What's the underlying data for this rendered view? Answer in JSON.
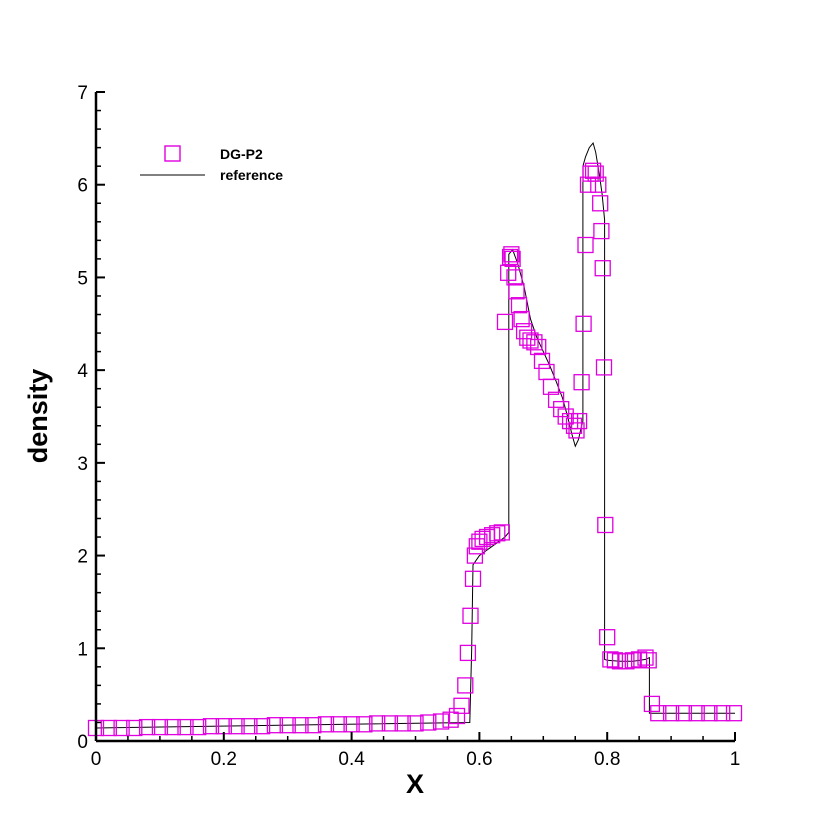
{
  "chart_data": {
    "type": "scatter",
    "title": "",
    "xlabel": "X",
    "ylabel": "density",
    "xlim": [
      0,
      1
    ],
    "ylim": [
      0,
      7
    ],
    "xticks": [
      0,
      0.2,
      0.4,
      0.6,
      0.8,
      1
    ],
    "yticks": [
      0,
      1,
      2,
      3,
      4,
      5,
      6,
      7
    ],
    "xtick_labels": [
      "0",
      "0.2",
      "0.4",
      "0.6",
      "0.8",
      "1"
    ],
    "ytick_labels": [
      "0",
      "1",
      "2",
      "3",
      "4",
      "5",
      "6",
      "7"
    ],
    "grid": false,
    "legend_position": "top-left",
    "series": [
      {
        "name": "DG-P2",
        "kind": "markers",
        "marker": "square-open",
        "color": "#e000e0",
        "x": [
          0.0,
          0.02,
          0.04,
          0.06,
          0.08,
          0.1,
          0.12,
          0.14,
          0.16,
          0.18,
          0.2,
          0.22,
          0.24,
          0.26,
          0.28,
          0.3,
          0.32,
          0.34,
          0.36,
          0.38,
          0.4,
          0.42,
          0.44,
          0.46,
          0.48,
          0.5,
          0.52,
          0.54,
          0.555,
          0.565,
          0.572,
          0.578,
          0.582,
          0.586,
          0.59,
          0.593,
          0.596,
          0.6,
          0.605,
          0.612,
          0.62,
          0.628,
          0.635,
          0.64,
          0.645,
          0.648,
          0.65,
          0.652,
          0.655,
          0.658,
          0.662,
          0.666,
          0.67,
          0.675,
          0.68,
          0.686,
          0.692,
          0.698,
          0.705,
          0.712,
          0.72,
          0.728,
          0.735,
          0.742,
          0.748,
          0.752,
          0.756,
          0.76,
          0.763,
          0.766,
          0.77,
          0.774,
          0.778,
          0.782,
          0.786,
          0.789,
          0.791,
          0.793,
          0.795,
          0.797,
          0.8,
          0.805,
          0.812,
          0.82,
          0.83,
          0.84,
          0.85,
          0.86,
          0.865,
          0.87,
          0.88,
          0.9,
          0.92,
          0.94,
          0.96,
          0.98,
          1.0
        ],
        "y": [
          0.14,
          0.14,
          0.14,
          0.14,
          0.15,
          0.15,
          0.15,
          0.15,
          0.15,
          0.16,
          0.16,
          0.16,
          0.16,
          0.16,
          0.17,
          0.17,
          0.17,
          0.17,
          0.18,
          0.18,
          0.18,
          0.18,
          0.19,
          0.19,
          0.19,
          0.19,
          0.2,
          0.21,
          0.23,
          0.27,
          0.38,
          0.6,
          0.95,
          1.35,
          1.75,
          2.0,
          2.1,
          2.15,
          2.18,
          2.2,
          2.22,
          2.24,
          2.25,
          4.52,
          5.05,
          5.22,
          5.25,
          5.2,
          5.0,
          4.85,
          4.7,
          4.55,
          4.42,
          4.35,
          4.32,
          4.3,
          4.25,
          4.1,
          3.98,
          3.82,
          3.68,
          3.58,
          3.5,
          3.45,
          3.4,
          3.35,
          3.45,
          3.87,
          4.5,
          5.35,
          6.0,
          6.12,
          6.15,
          6.12,
          6.0,
          5.8,
          5.5,
          5.1,
          4.03,
          2.33,
          1.12,
          0.88,
          0.87,
          0.86,
          0.86,
          0.87,
          0.88,
          0.9,
          0.87,
          0.4,
          0.3,
          0.3,
          0.3,
          0.3,
          0.3,
          0.3,
          0.3
        ]
      },
      {
        "name": "reference",
        "kind": "line",
        "color": "#000000",
        "x": [
          0.0,
          0.585,
          0.588,
          0.59,
          0.6,
          0.61,
          0.62,
          0.63,
          0.64,
          0.646,
          0.646,
          0.652,
          0.66,
          0.67,
          0.68,
          0.69,
          0.7,
          0.71,
          0.72,
          0.73,
          0.738,
          0.745,
          0.75,
          0.755,
          0.76,
          0.762,
          0.762,
          0.766,
          0.772,
          0.778,
          0.782,
          0.788,
          0.792,
          0.796,
          0.796,
          0.8,
          0.82,
          0.84,
          0.86,
          0.866,
          0.866,
          0.9,
          0.95,
          1.0
        ],
        "y": [
          0.14,
          0.2,
          1.0,
          1.9,
          2.0,
          2.05,
          2.1,
          2.15,
          2.2,
          2.25,
          5.25,
          5.3,
          5.15,
          4.9,
          4.55,
          4.35,
          4.2,
          4.05,
          3.88,
          3.7,
          3.5,
          3.3,
          3.18,
          3.25,
          3.4,
          3.45,
          6.2,
          6.3,
          6.4,
          6.45,
          6.35,
          6.1,
          5.9,
          5.62,
          0.88,
          0.87,
          0.86,
          0.86,
          0.88,
          0.9,
          0.3,
          0.3,
          0.3,
          0.3
        ]
      }
    ]
  }
}
